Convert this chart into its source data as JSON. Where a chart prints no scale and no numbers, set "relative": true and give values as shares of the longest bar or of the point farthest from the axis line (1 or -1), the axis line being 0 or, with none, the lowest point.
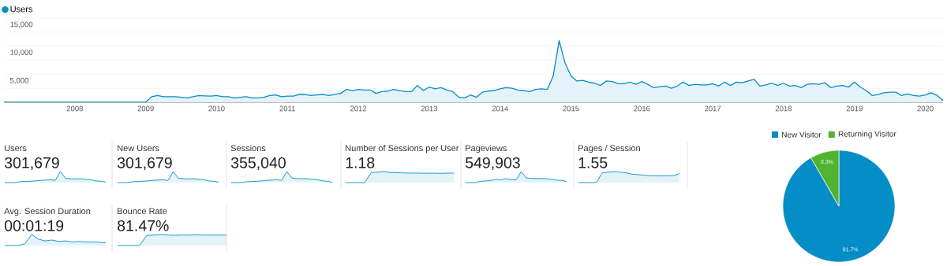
{
  "chart_data": [
    {
      "type": "area",
      "x": [
        "2007-01",
        "2009-01",
        "2009-02",
        "2009-03",
        "2009-04",
        "2009-06",
        "2009-08",
        "2009-10",
        "2009-12",
        "2010-01",
        "2010-02",
        "2010-03",
        "2010-04",
        "2010-06",
        "2010-07",
        "2010-08",
        "2010-09",
        "2010-10",
        "2010-11",
        "2010-12",
        "2011-01",
        "2011-02",
        "2011-03",
        "2011-04",
        "2011-05",
        "2011-06",
        "2011-07",
        "2011-08",
        "2011-09",
        "2011-10",
        "2011-11",
        "2011-12",
        "2012-01",
        "2012-02",
        "2012-03",
        "2012-04",
        "2012-05",
        "2012-06",
        "2012-07",
        "2012-08",
        "2012-09",
        "2012-10",
        "2012-11",
        "2012-12",
        "2013-01",
        "2013-02",
        "2013-03",
        "2013-04",
        "2013-05",
        "2013-06",
        "2013-07",
        "2013-08",
        "2013-09",
        "2013-10",
        "2013-11",
        "2013-12",
        "2014-01",
        "2014-02",
        "2014-03",
        "2014-04",
        "2014-05",
        "2014-06",
        "2014-07",
        "2014-08",
        "2014-09",
        "2014-10",
        "2014-11",
        "2014-12",
        "2015-01",
        "2015-02",
        "2015-03",
        "2015-04",
        "2015-05",
        "2015-06",
        "2015-07",
        "2015-08",
        "2015-09",
        "2015-10",
        "2015-11",
        "2015-12",
        "2016-01",
        "2016-02",
        "2016-03",
        "2016-04",
        "2016-05",
        "2016-06",
        "2016-07",
        "2016-08",
        "2016-09",
        "2016-10",
        "2016-11",
        "2016-12",
        "2017-01",
        "2017-02",
        "2017-03",
        "2017-04",
        "2017-05",
        "2017-06",
        "2017-07",
        "2017-08",
        "2017-09",
        "2017-10",
        "2017-11",
        "2017-12",
        "2018-01",
        "2018-02",
        "2018-03",
        "2018-04",
        "2018-05",
        "2018-06",
        "2018-07",
        "2018-08",
        "2018-09",
        "2018-10",
        "2018-11",
        "2018-12",
        "2019-01",
        "2019-02",
        "2019-03",
        "2019-04",
        "2019-05",
        "2019-06",
        "2019-07",
        "2019-08",
        "2019-09",
        "2019-10",
        "2019-11",
        "2019-12",
        "2020-01",
        "2020-02",
        "2020-03",
        "2020-04"
      ],
      "series": [
        {
          "name": "Users",
          "color": "#058dc7",
          "values": [
            0,
            0,
            1000,
            1200,
            1000,
            1000,
            800,
            1200,
            1100,
            1200,
            1000,
            1000,
            800,
            1000,
            800,
            800,
            900,
            1200,
            1300,
            1000,
            1100,
            1100,
            1400,
            1400,
            1200,
            1300,
            1400,
            1200,
            1400,
            1600,
            2300,
            2100,
            2300,
            2200,
            2200,
            1600,
            1900,
            2000,
            2300,
            2100,
            1900,
            1900,
            3000,
            2100,
            2700,
            2400,
            2600,
            2200,
            1900,
            900,
            800,
            1300,
            900,
            1800,
            2000,
            2100,
            2400,
            2600,
            2500,
            2200,
            2100,
            1900,
            2300,
            2400,
            2300,
            4700,
            11000,
            7000,
            4700,
            3800,
            3900,
            3600,
            3400,
            3000,
            3800,
            3700,
            3300,
            3300,
            3600,
            3200,
            3700,
            3200,
            2600,
            2800,
            2900,
            2500,
            2900,
            3600,
            3000,
            3200,
            3100,
            3100,
            3300,
            2900,
            3600,
            3000,
            3600,
            3500,
            3800,
            4100,
            2900,
            3100,
            3400,
            3000,
            3400,
            2900,
            3000,
            2600,
            3200,
            3300,
            3200,
            3500,
            2600,
            2900,
            3000,
            2700,
            3600,
            2700,
            2100,
            1200,
            1400,
            1700,
            1800,
            1800,
            1200,
            1500,
            1200,
            1100,
            1300,
            1700,
            1200,
            300
          ]
        }
      ],
      "xlim": [
        "2007-01",
        "2020-04"
      ],
      "xticks": [
        "2008",
        "2009",
        "2010",
        "2011",
        "2012",
        "2013",
        "2014",
        "2015",
        "2016",
        "2017",
        "2018",
        "2019",
        "2020"
      ],
      "ylim": [
        0,
        15000
      ],
      "yticks": [
        {
          "value": 0,
          "label": null
        },
        {
          "value": 2500,
          "label": null
        },
        {
          "value": 5000,
          "label": "5,000"
        },
        {
          "value": 7500,
          "label": null
        },
        {
          "value": 10000,
          "label": "10,000"
        },
        {
          "value": 12500,
          "label": null
        },
        {
          "value": 15000,
          "label": "15,000"
        }
      ],
      "grid": "y",
      "legend": "top left"
    },
    {
      "type": "area",
      "title": "Users",
      "subtitle": "301,679",
      "relative": true,
      "color": "#058dc7",
      "categories": [
        null,
        null,
        null,
        null,
        null,
        null,
        null,
        null,
        null,
        null,
        null,
        null,
        null,
        null,
        null,
        null,
        null,
        null,
        null,
        null,
        null
      ],
      "values": [
        0,
        0,
        0,
        0.08,
        0.1,
        0.12,
        0.15,
        0.2,
        0.22,
        0.25,
        0.2,
        1,
        0.4,
        0.35,
        0.33,
        0.35,
        0.3,
        0.27,
        0.15,
        0.12,
        0.04
      ]
    },
    {
      "type": "area",
      "title": "New Users",
      "subtitle": "301,679",
      "relative": true,
      "color": "#058dc7",
      "categories": [
        null,
        null,
        null,
        null,
        null,
        null,
        null,
        null,
        null,
        null,
        null,
        null,
        null,
        null,
        null,
        null,
        null,
        null,
        null,
        null,
        null
      ],
      "values": [
        0,
        0,
        0,
        0.08,
        0.1,
        0.13,
        0.15,
        0.2,
        0.23,
        0.25,
        0.2,
        1,
        0.4,
        0.36,
        0.33,
        0.35,
        0.3,
        0.28,
        0.15,
        0.12,
        0.04
      ]
    },
    {
      "type": "area",
      "title": "Sessions",
      "subtitle": "355,040",
      "relative": true,
      "color": "#058dc7",
      "categories": [
        null,
        null,
        null,
        null,
        null,
        null,
        null,
        null,
        null,
        null,
        null,
        null,
        null,
        null,
        null,
        null,
        null,
        null,
        null,
        null,
        null
      ],
      "values": [
        0,
        0,
        0,
        0.07,
        0.1,
        0.12,
        0.15,
        0.2,
        0.22,
        0.27,
        0.2,
        1,
        0.42,
        0.36,
        0.34,
        0.36,
        0.3,
        0.28,
        0.16,
        0.12,
        0.03
      ]
    },
    {
      "type": "area",
      "title": "Number of Sessions per User",
      "subtitle": "1.18",
      "relative": true,
      "color": "#058dc7",
      "categories": [
        null,
        null,
        null,
        null,
        null,
        null,
        null,
        null,
        null,
        null,
        null,
        null,
        null,
        null,
        null,
        null,
        null,
        null
      ],
      "values": [
        0,
        0,
        0,
        0,
        0.9,
        0.95,
        1,
        0.92,
        0.9,
        0.88,
        0.86,
        0.86,
        0.85,
        0.85,
        0.85,
        0.84,
        0.85,
        0.86
      ]
    },
    {
      "type": "area",
      "title": "Pageviews",
      "subtitle": "549,903",
      "relative": true,
      "color": "#058dc7",
      "categories": [
        null,
        null,
        null,
        null,
        null,
        null,
        null,
        null,
        null,
        null,
        null,
        null,
        null,
        null,
        null,
        null,
        null,
        null,
        null,
        null,
        null
      ],
      "values": [
        0,
        0,
        0,
        0.12,
        0.15,
        0.2,
        0.3,
        0.25,
        0.35,
        0.28,
        0.25,
        1,
        0.42,
        0.38,
        0.36,
        0.38,
        0.35,
        0.3,
        0.22,
        0.2,
        0.1
      ]
    },
    {
      "type": "area",
      "title": "Pages / Session",
      "subtitle": "1.55",
      "relative": true,
      "color": "#058dc7",
      "categories": [
        null,
        null,
        null,
        null,
        null,
        null,
        null,
        null,
        null,
        null,
        null,
        null,
        null,
        null,
        null,
        null,
        null,
        null
      ],
      "values": [
        0,
        0,
        0,
        0,
        0.89,
        0.95,
        1,
        0.95,
        0.89,
        0.76,
        0.72,
        0.67,
        0.63,
        0.61,
        0.61,
        0.61,
        0.63,
        0.82
      ]
    },
    {
      "type": "area",
      "title": "Avg. Session Duration",
      "subtitle": "00:01:19",
      "relative": true,
      "color": "#058dc7",
      "categories": [
        null,
        null,
        null,
        null,
        null,
        null,
        null,
        null,
        null,
        null,
        null,
        null,
        null,
        null,
        null,
        null
      ],
      "values": [
        0,
        0,
        0,
        0.17,
        1,
        0.58,
        0.42,
        0.5,
        0.37,
        0.42,
        0.33,
        0.37,
        0.33,
        0.33,
        0.3,
        0.25
      ]
    },
    {
      "type": "area",
      "title": "Bounce Rate",
      "subtitle": "81.47%",
      "relative": true,
      "color": "#058dc7",
      "categories": [
        null,
        null,
        null,
        null,
        null,
        null,
        null,
        null,
        null,
        null,
        null,
        null,
        null,
        null,
        null,
        null
      ],
      "values": [
        0,
        0,
        0,
        0,
        0.9,
        0.95,
        1,
        0.95,
        0.93,
        0.95,
        0.95,
        0.97,
        0.95,
        0.95,
        0.95,
        0.95
      ]
    },
    {
      "type": "pie",
      "categories": [
        "New Visitor",
        "Returning Visitor"
      ],
      "values": [
        91.7,
        8.3
      ],
      "colors": [
        "#058dc7",
        "#50b432"
      ],
      "value_labels": [
        "91.7%",
        "8.3%"
      ],
      "legend": "top"
    }
  ]
}
